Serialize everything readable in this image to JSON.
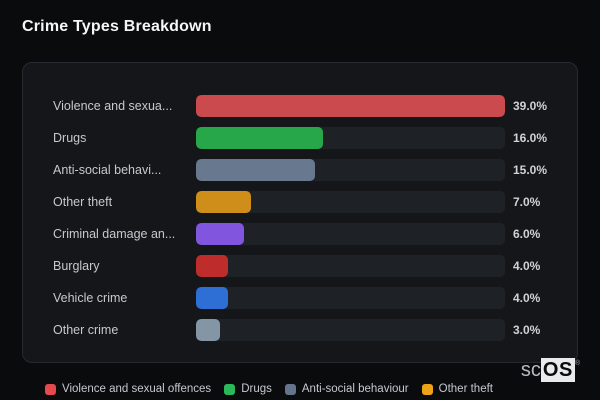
{
  "header": {
    "title": "Crime Types Breakdown"
  },
  "brand": {
    "prefix": "sc",
    "suffix": "OS",
    "registered": "®"
  },
  "colors": {
    "page_bg": "#0a0b0d",
    "card_bg": "#14161a",
    "card_border": "#26292f",
    "track_bg": "#1e2126",
    "title_text": "#f4f6f8",
    "label_text": "#c4c9d0",
    "value_text": "#ced3da"
  },
  "chart_data": {
    "type": "bar",
    "orientation": "horizontal",
    "title": "Crime Types Breakdown",
    "value_unit": "percent",
    "scale_max": 39.0,
    "grid": false,
    "legend_position": "bottom",
    "categories": [
      "Violence and sexua...",
      "Drugs",
      "Anti-social behavi...",
      "Other theft",
      "Criminal damage an...",
      "Burglary",
      "Vehicle crime",
      "Other crime"
    ],
    "values": [
      39.0,
      16.0,
      15.0,
      7.0,
      6.0,
      4.0,
      4.0,
      3.0
    ],
    "items": [
      {
        "label": "Violence and sexua...",
        "value": 39.0,
        "display_value": "39.0%",
        "color": "#cb4a4e"
      },
      {
        "label": "Drugs",
        "value": 16.0,
        "display_value": "16.0%",
        "color": "#27a74a"
      },
      {
        "label": "Anti-social behavi...",
        "value": 15.0,
        "display_value": "15.0%",
        "color": "#68798f"
      },
      {
        "label": "Other theft",
        "value": 7.0,
        "display_value": "7.0%",
        "color": "#cf8d1a"
      },
      {
        "label": "Criminal damage an...",
        "value": 6.0,
        "display_value": "6.0%",
        "color": "#8155dd"
      },
      {
        "label": "Burglary",
        "value": 4.0,
        "display_value": "4.0%",
        "color": "#bf2c2c"
      },
      {
        "label": "Vehicle crime",
        "value": 4.0,
        "display_value": "4.0%",
        "color": "#2e6fd6"
      },
      {
        "label": "Other crime",
        "value": 3.0,
        "display_value": "3.0%",
        "color": "#8495a6"
      }
    ],
    "legend": [
      {
        "label": "Violence and sexual offences",
        "color": "#e5484d"
      },
      {
        "label": "Drugs",
        "color": "#2bb859"
      },
      {
        "label": "Anti-social behaviour",
        "color": "#64748b"
      },
      {
        "label": "Other theft",
        "color": "#eda319"
      }
    ]
  }
}
